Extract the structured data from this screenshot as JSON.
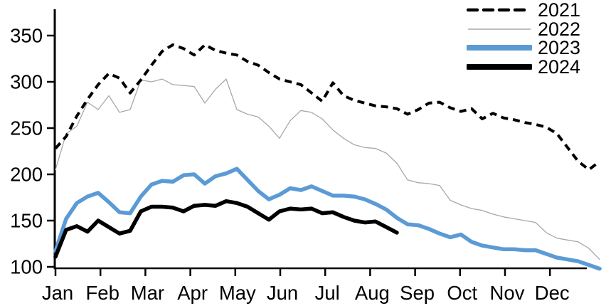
{
  "chart_data": {
    "type": "line",
    "title": "",
    "x_unit": "week",
    "x_tick_labels": [
      "Jan",
      "Feb",
      "Mar",
      "Apr",
      "May",
      "Jun",
      "Jul",
      "Aug",
      "Sep",
      "Oct",
      "Nov",
      "Dec"
    ],
    "y_ticks": [
      100,
      150,
      200,
      250,
      300,
      350
    ],
    "y_tick_labels": [
      "100",
      "150",
      "200",
      "250",
      "300",
      "350"
    ],
    "ylim": [
      100,
      350
    ],
    "grid": false,
    "legend_position": "top-right",
    "series": [
      {
        "name": "2021",
        "color": "#000000",
        "style": "dashed",
        "width": 4,
        "values": [
          228,
          241,
          263,
          281,
          297,
          309,
          304,
          288,
          302,
          318,
          333,
          340,
          336,
          329,
          340,
          334,
          331,
          329,
          322,
          318,
          310,
          303,
          300,
          297,
          288,
          279,
          299,
          285,
          280,
          277,
          274,
          273,
          271,
          265,
          270,
          277,
          278,
          272,
          268,
          271,
          260,
          266,
          261,
          259,
          256,
          254,
          251,
          244,
          229,
          214,
          205,
          214
        ]
      },
      {
        "name": "2022",
        "color": "#a8a8a8",
        "style": "solid",
        "width": 1.3,
        "values": [
          205,
          244,
          252,
          278,
          270,
          285,
          267,
          270,
          302,
          300,
          303,
          297,
          296,
          295,
          277,
          292,
          303,
          270,
          265,
          262,
          252,
          239,
          258,
          269,
          267,
          260,
          248,
          239,
          232,
          229,
          228,
          223,
          212,
          194,
          191,
          190,
          188,
          172,
          167,
          163,
          161,
          157,
          154,
          152,
          150,
          148,
          137,
          131,
          129,
          127,
          120,
          108
        ]
      },
      {
        "name": "2023",
        "color": "#5b9bd5",
        "style": "solid",
        "width": 5.5,
        "values": [
          117,
          152,
          169,
          176,
          180,
          170,
          159,
          158,
          176,
          189,
          193,
          192,
          199,
          200,
          190,
          198,
          201,
          206,
          194,
          182,
          173,
          178,
          185,
          183,
          187,
          182,
          177,
          177,
          176,
          173,
          168,
          162,
          153,
          146,
          145,
          141,
          136,
          132,
          135,
          127,
          123,
          121,
          119,
          119,
          118,
          118,
          114,
          110,
          108,
          106,
          102,
          98
        ]
      },
      {
        "name": "2024",
        "color": "#000000",
        "style": "solid",
        "width": 5.5,
        "values": [
          111,
          140,
          144,
          138,
          150,
          143,
          136,
          139,
          160,
          165,
          165,
          164,
          160,
          166,
          167,
          166,
          171,
          169,
          165,
          158,
          151,
          160,
          163,
          162,
          163,
          158,
          159,
          154,
          150,
          148,
          149,
          143,
          137
        ]
      }
    ]
  }
}
